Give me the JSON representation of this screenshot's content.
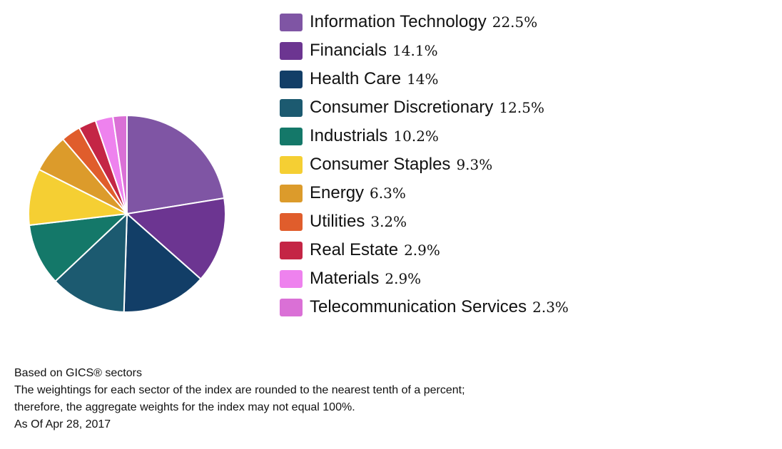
{
  "chart_data": {
    "type": "pie",
    "title": "",
    "categories": [
      "Information Technology",
      "Financials",
      "Health Care",
      "Consumer Discretionary",
      "Industrials",
      "Consumer Staples",
      "Energy",
      "Utilities",
      "Real Estate",
      "Materials",
      "Telecommunication Services"
    ],
    "values": [
      22.5,
      14.1,
      14,
      12.5,
      10.2,
      9.3,
      6.3,
      3.2,
      2.9,
      2.9,
      2.3
    ],
    "value_labels": [
      "22.5%",
      "14.1%",
      "14%",
      "12.5%",
      "10.2%",
      "9.3%",
      "6.3%",
      "3.2%",
      "2.9%",
      "2.9%",
      "2.3%"
    ],
    "colors": [
      "#7f55a4",
      "#6c3591",
      "#123e67",
      "#1c5a70",
      "#147869",
      "#f5cf33",
      "#dc9b2b",
      "#e05d2c",
      "#c42545",
      "#ee82ee",
      "#da70d6"
    ],
    "legend_position": "right"
  },
  "footnotes": {
    "line1": "Based on GICS® sectors",
    "line2": "The weightings for each sector of the index are rounded to the nearest tenth of a percent;",
    "line3": "therefore, the aggregate weights for the index may not equal 100%.",
    "line4": "As Of Apr 28, 2017"
  }
}
